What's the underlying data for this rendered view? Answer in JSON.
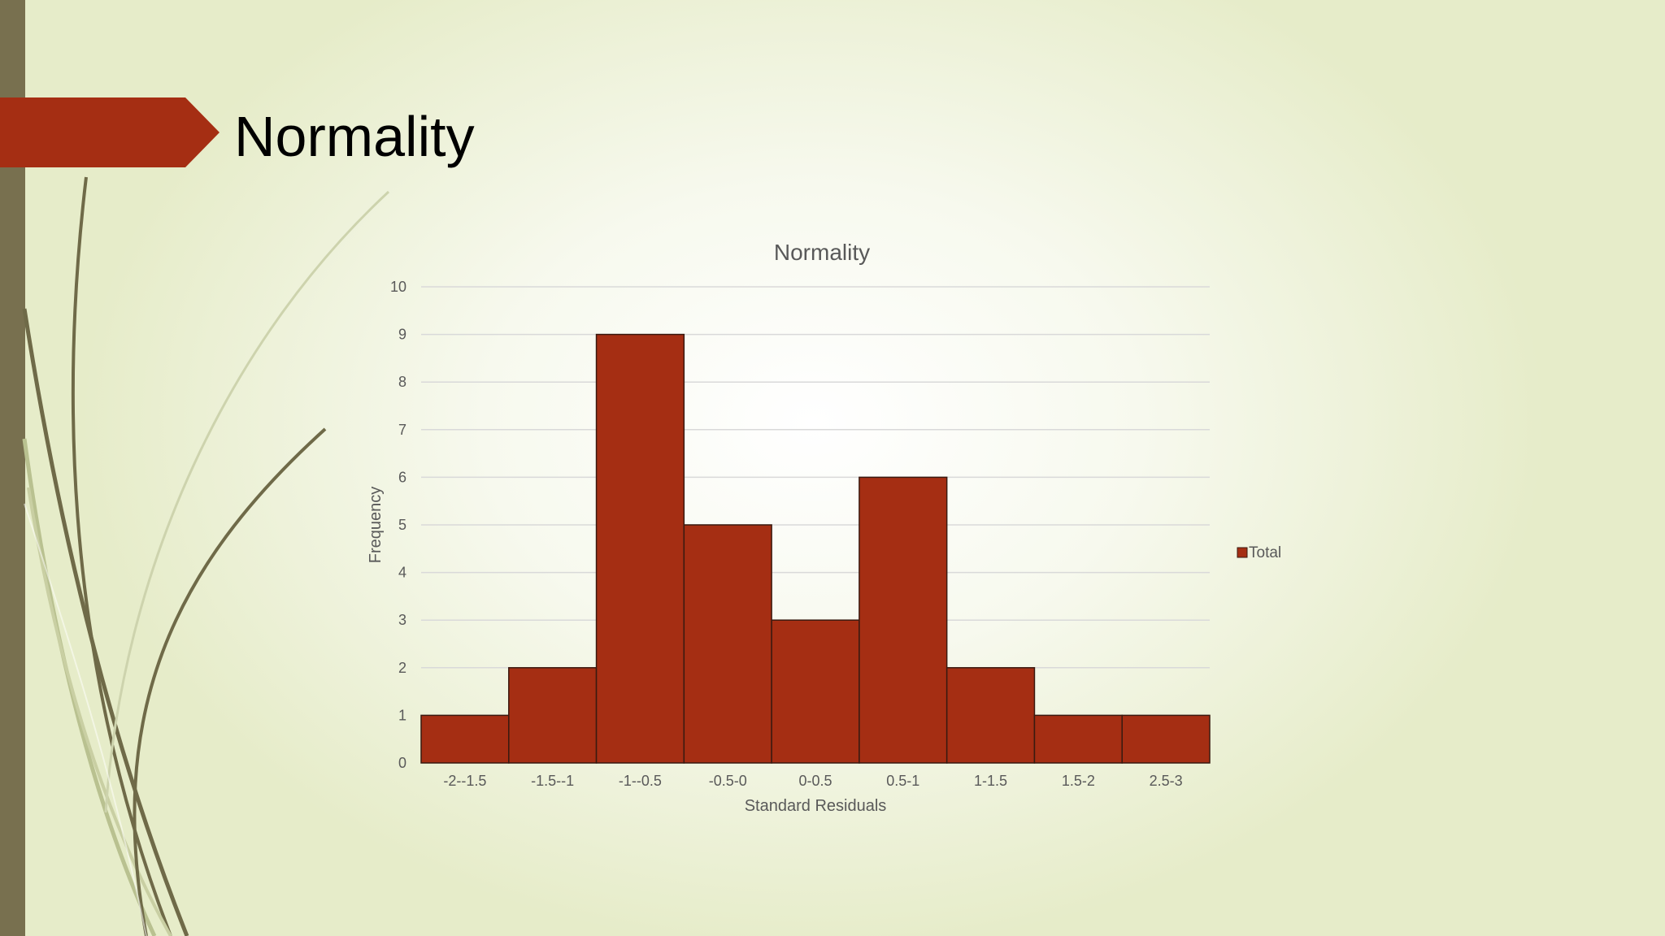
{
  "slide": {
    "title": "Normality"
  },
  "colors": {
    "accent": "#a52e13",
    "side_bar": "#78704f",
    "bar_outline": "#3a1a10",
    "gridline": "#d9d9d9",
    "text": "#595959"
  },
  "chart_data": {
    "type": "bar",
    "title": "Normality",
    "xlabel": "Standard Residuals",
    "ylabel": "Frequency",
    "categories": [
      "-2--1.5",
      "-1.5--1",
      "-1--0.5",
      "-0.5-0",
      "0-0.5",
      "0.5-1",
      "1-1.5",
      "1.5-2",
      "2.5-3"
    ],
    "series": [
      {
        "name": "Total",
        "values": [
          1,
          2,
          9,
          5,
          3,
          6,
          2,
          1,
          1
        ]
      }
    ],
    "ylim": [
      0,
      10
    ],
    "yticks": [
      0,
      1,
      2,
      3,
      4,
      5,
      6,
      7,
      8,
      9,
      10
    ],
    "grid": true,
    "legend": "right"
  }
}
